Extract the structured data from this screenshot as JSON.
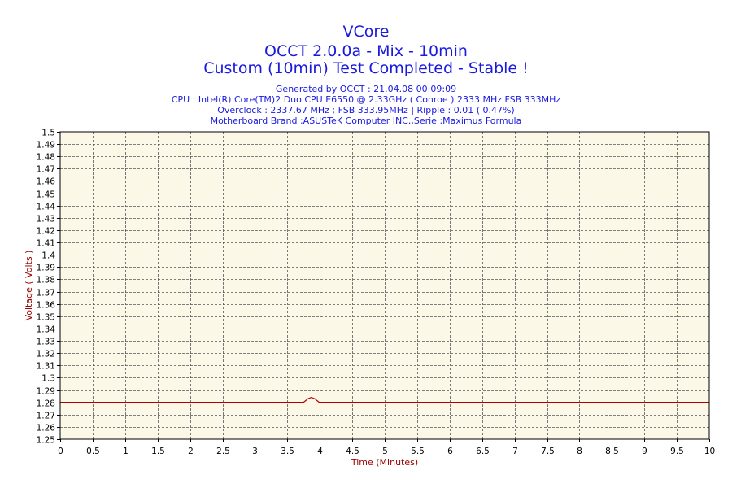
{
  "header": {
    "title": "VCore",
    "subtitle": "OCCT 2.0.0a - Mix - 10min",
    "status": "Custom (10min) Test Completed - Stable !",
    "generated": "Generated by OCCT : 21.04.08 00:09:09",
    "cpu": "CPU : Intel(R) Core(TM)2 Duo CPU E6550 @ 2.33GHz ( Conroe ) 2333 MHz FSB 333MHz",
    "overclock": "Overclock : 2337.67 MHz ; FSB 333.95MHz | Ripple : 0.01 ( 0.47%)",
    "motherboard": "Motherboard Brand :ASUSTeK Computer INC.,Serie :Maximus Formula"
  },
  "colors": {
    "title": "#1a1adf",
    "axis_label": "#990000",
    "plot_bg": "#fbf8e8",
    "grid": "#555555",
    "line": "#b00000"
  },
  "chart_data": {
    "type": "line",
    "title": "VCore",
    "xlabel": "Time (Minutes)",
    "ylabel": "Voltage ( Volts )",
    "xlim": [
      0,
      10
    ],
    "ylim": [
      1.25,
      1.5
    ],
    "grid": true,
    "x_ticks": [
      "0",
      "0.5",
      "1",
      "1.5",
      "2",
      "2.5",
      "3",
      "3.5",
      "4",
      "4.5",
      "5",
      "5.5",
      "6",
      "6.5",
      "7",
      "7.5",
      "8",
      "8.5",
      "9",
      "9.5",
      "10"
    ],
    "y_ticks": [
      "1.5",
      "1.49",
      "1.48",
      "1.47",
      "1.46",
      "1.45",
      "1.44",
      "1.43",
      "1.42",
      "1.41",
      "1.4",
      "1.39",
      "1.38",
      "1.37",
      "1.36",
      "1.35",
      "1.34",
      "1.33",
      "1.32",
      "1.31",
      "1.3",
      "1.29",
      "1.28",
      "1.27",
      "1.26",
      "1.25"
    ],
    "series": [
      {
        "x": [
          0,
          3.75,
          3.82,
          3.87,
          3.92,
          3.99,
          10
        ],
        "y": [
          1.28,
          1.28,
          1.283,
          1.284,
          1.283,
          1.28,
          1.28
        ]
      }
    ]
  }
}
